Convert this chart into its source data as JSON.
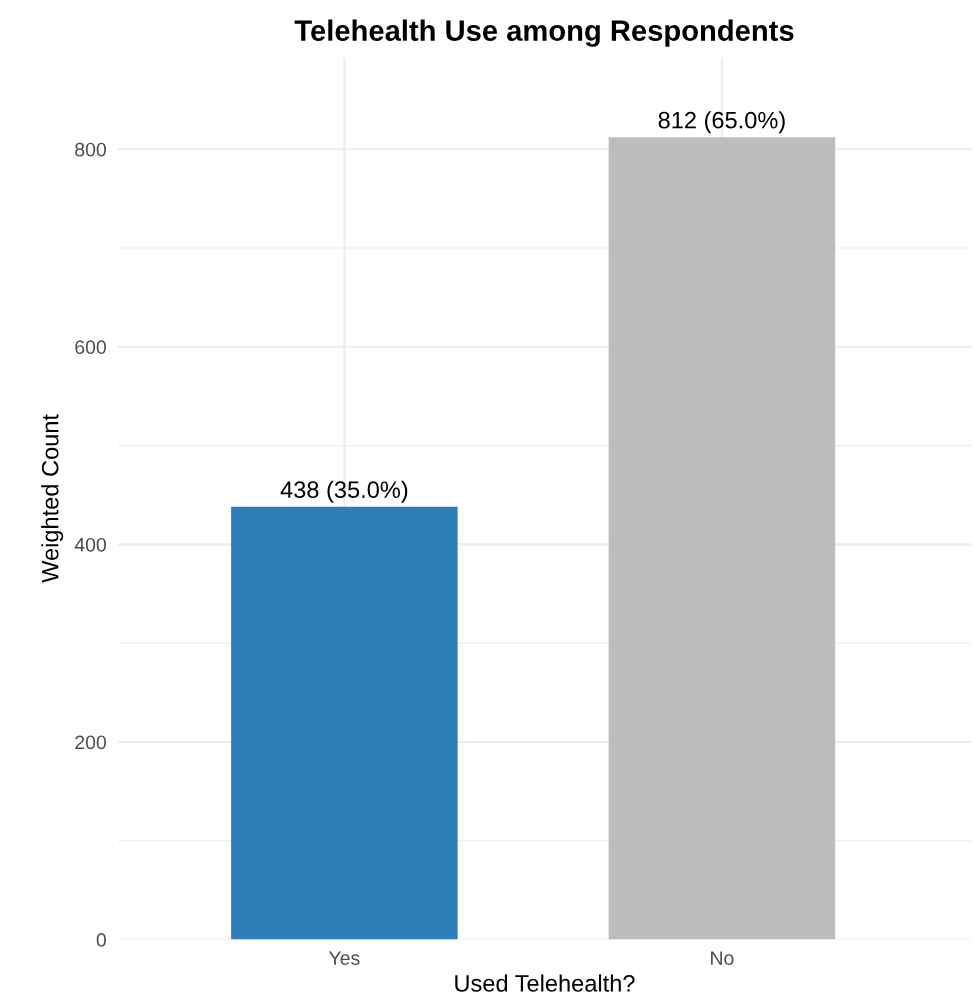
{
  "chart_data": {
    "type": "bar",
    "title": "Telehealth Use among Respondents",
    "xlabel": "Used Telehealth?",
    "ylabel": "Weighted Count",
    "categories": [
      "Yes",
      "No"
    ],
    "values": [
      438,
      812
    ],
    "colors": [
      "#2e7eb8",
      "#bdbdbd"
    ],
    "value_labels": [
      "438 (35.0%)",
      "812 (65.0%)"
    ],
    "ylim": [
      0,
      893
    ],
    "yticks": [
      0,
      {
        "value": 100,
        "label": null
      },
      200,
      {
        "value": 300,
        "label": null
      },
      400,
      {
        "value": 500,
        "label": null
      },
      600,
      {
        "value": 700,
        "label": null
      },
      800
    ],
    "grid": true
  }
}
